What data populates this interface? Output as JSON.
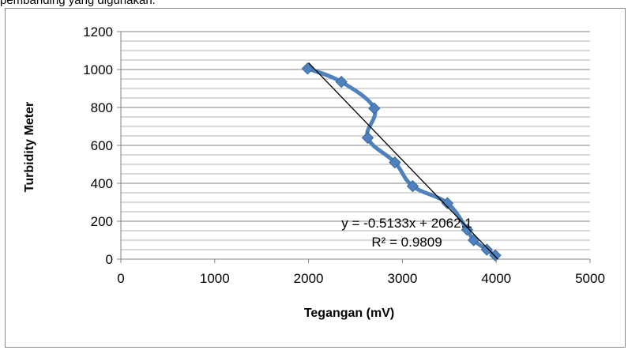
{
  "caption_fragment": "pembanding yang digunakan.",
  "chart_data": {
    "type": "scatter",
    "xlabel": "Tegangan (mV)",
    "ylabel": "Turbidity Meter",
    "xlim": [
      0,
      5000
    ],
    "ylim": [
      0,
      1200
    ],
    "x_ticks": [
      0,
      1000,
      2000,
      3000,
      4000,
      5000
    ],
    "y_ticks": [
      0,
      200,
      400,
      600,
      800,
      1000,
      1200
    ],
    "grid": "horizontal major and minor",
    "series": [
      {
        "values_xy": [
          [
            1990,
            1005
          ],
          [
            2350,
            935
          ],
          [
            2700,
            795
          ],
          [
            2630,
            640
          ],
          [
            2920,
            510
          ],
          [
            3110,
            385
          ],
          [
            3480,
            295
          ],
          [
            3690,
            155
          ],
          [
            3760,
            100
          ],
          [
            3900,
            50
          ],
          [
            3990,
            20
          ]
        ],
        "color": "#4F81BD",
        "marker": "diamond",
        "line": "smoothed"
      }
    ],
    "trendline": {
      "slope": -0.5133,
      "intercept": 2062.1,
      "x_range": [
        2000,
        4020
      ],
      "color": "#000000"
    },
    "annotations": {
      "equation": "y = -0.5133x + 2062.1",
      "r_squared": "R² = 0.9809"
    }
  }
}
